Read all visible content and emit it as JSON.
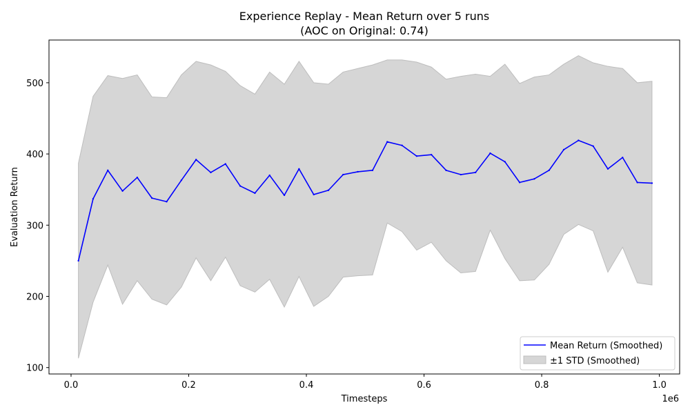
{
  "chart_data": {
    "type": "line",
    "title": "Experience Replay - Mean Return over 5 runs",
    "subtitle": "(AOC on Original: 0.74)",
    "xlabel": "Timesteps",
    "ylabel": "Evaluation Return",
    "x_offset_label": "1e6",
    "xlim": [
      -0.0375,
      1.0345
    ],
    "ylim": [
      91,
      560
    ],
    "x_ticks": [
      0,
      0.2,
      0.4,
      0.6,
      0.8,
      1.0
    ],
    "x_tick_labels": [
      "0.0",
      "0.2",
      "0.4",
      "0.6",
      "0.8",
      "1.0"
    ],
    "y_ticks": [
      100,
      200,
      300,
      400,
      500
    ],
    "y_tick_labels": [
      "100",
      "200",
      "300",
      "400",
      "500"
    ],
    "grid": false,
    "legend_position": "lower-right",
    "x": [
      0.0125,
      0.0375,
      0.0625,
      0.0875,
      0.1125,
      0.1375,
      0.1625,
      0.1875,
      0.2125,
      0.2375,
      0.2625,
      0.2875,
      0.3125,
      0.3375,
      0.3625,
      0.3875,
      0.4125,
      0.4375,
      0.4625,
      0.4875,
      0.5125,
      0.5375,
      0.5625,
      0.5875,
      0.6125,
      0.6375,
      0.6625,
      0.6875,
      0.7125,
      0.7375,
      0.7625,
      0.7875,
      0.8125,
      0.8375,
      0.8625,
      0.8875,
      0.9125,
      0.9375,
      0.9625,
      0.9875
    ],
    "series": [
      {
        "name": "Mean Return (Smoothed)",
        "color": "#0000ff",
        "values": [
          250,
          337,
          377,
          348,
          367,
          338,
          333,
          363,
          392,
          374,
          386,
          355,
          345,
          370,
          342,
          379,
          343,
          349,
          371,
          375,
          377,
          417,
          412,
          397,
          399,
          377,
          371,
          374,
          401,
          389,
          360,
          365,
          377,
          406,
          419,
          411,
          379,
          395,
          360,
          359
        ]
      }
    ],
    "band": {
      "name": "±1 STD (Smoothed)",
      "color": "#d6d6d6",
      "edge_color": "#bdbdbd",
      "upper": [
        387,
        481,
        510,
        506,
        511,
        480,
        479,
        511,
        530,
        525,
        516,
        496,
        484,
        515,
        498,
        530,
        500,
        498,
        515,
        520,
        525,
        532,
        532,
        529,
        522,
        505,
        509,
        512,
        509,
        526,
        499,
        508,
        511,
        526,
        538,
        528,
        523,
        520,
        500,
        502
      ],
      "lower": [
        113,
        192,
        244,
        189,
        222,
        196,
        188,
        213,
        254,
        222,
        255,
        215,
        206,
        224,
        185,
        228,
        186,
        200,
        227,
        229,
        230,
        303,
        291,
        265,
        276,
        250,
        233,
        235,
        293,
        253,
        222,
        223,
        245,
        287,
        301,
        292,
        234,
        269,
        219,
        216
      ]
    }
  }
}
